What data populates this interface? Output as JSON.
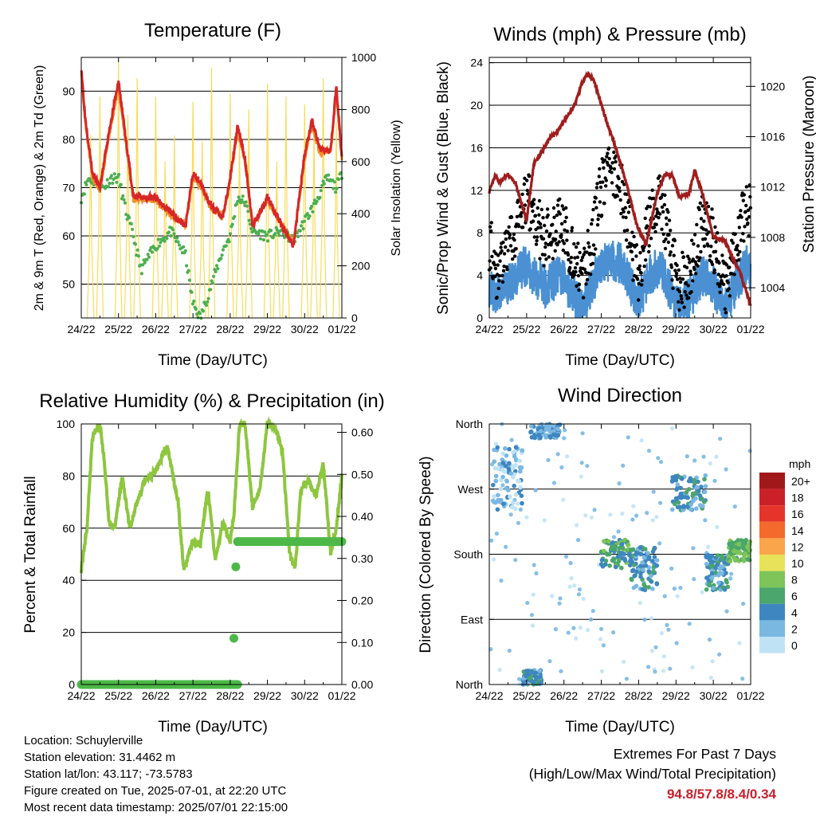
{
  "colors": {
    "temp_2m": "#d62728",
    "temp_9m": "#f28e2b",
    "dewpoint": "#4caf50",
    "solar": "#f7dc5a",
    "wind": "#4a90d2",
    "gust": "#000000",
    "pressure": "#a01d1d",
    "rh": "#8dc63f",
    "precip": "#4db848",
    "extremes_values": "#c8202c"
  },
  "speed_colorbar": {
    "unit": "mph",
    "labels": [
      "20+",
      "18",
      "16",
      "14",
      "12",
      "10",
      "8",
      "6",
      "4",
      "2",
      "0"
    ],
    "colors": [
      "#a1181b",
      "#cb2027",
      "#e5352b",
      "#f36a2c",
      "#fba54b",
      "#e8e25a",
      "#7dc459",
      "#4aa66a",
      "#3e86c0",
      "#7ab8e2",
      "#bfe3f5"
    ]
  },
  "charts": [
    {
      "id": "temperature",
      "title": "Temperature (F)",
      "xlabel": "Time (Day/UTC)",
      "ylabel": "2m & 9m T (Red, Orange) & 2m Td (Green)",
      "y2label": "Solar Insolation (Yellow)",
      "xticks": [
        "24/22",
        "25/22",
        "26/22",
        "27/22",
        "28/22",
        "29/22",
        "30/22",
        "01/22"
      ],
      "yticks": [
        "50",
        "60",
        "70",
        "80",
        "90"
      ],
      "y2ticks": [
        "0",
        "200",
        "400",
        "600",
        "800",
        "1000"
      ]
    },
    {
      "id": "winds",
      "title": "Winds (mph) & Pressure (mb)",
      "xlabel": "Time (Day/UTC)",
      "ylabel": "Sonic/Prop Wind & Gust (Blue, Black)",
      "y2label": "Station Pressure (Maroon)",
      "xticks": [
        "24/22",
        "25/22",
        "26/22",
        "27/22",
        "28/22",
        "29/22",
        "30/22",
        "01/22"
      ],
      "yticks": [
        "0",
        "4",
        "8",
        "12",
        "16",
        "20",
        "24"
      ],
      "y2ticks": [
        "1004",
        "1008",
        "1012",
        "1016",
        "1020"
      ]
    },
    {
      "id": "humidity",
      "title": "Relative Humidity (%) & Precipitation (in)",
      "xlabel": "Time (Day/UTC)",
      "ylabel": "Percent & Total Rainfall",
      "xticks": [
        "24/22",
        "25/22",
        "26/22",
        "27/22",
        "28/22",
        "29/22",
        "30/22",
        "01/22"
      ],
      "yticks": [
        "0",
        "20",
        "40",
        "60",
        "80",
        "100"
      ],
      "y2ticks": [
        "0.00",
        "0.10",
        "0.20",
        "0.30",
        "0.40",
        "0.50",
        "0.60"
      ]
    },
    {
      "id": "direction",
      "title": "Wind Direction",
      "xlabel": "Time (Day/UTC)",
      "ylabel": "Direction (Colored By Speed)",
      "xticks": [
        "24/22",
        "25/22",
        "26/22",
        "27/22",
        "28/22",
        "29/22",
        "30/22",
        "01/22"
      ],
      "yticks": [
        "North",
        "East",
        "South",
        "West",
        "North"
      ]
    }
  ],
  "chart_data": [
    {
      "type": "line",
      "title": "Temperature (F)",
      "x_unit": "days since 24/22 UTC",
      "ylim": [
        43,
        97
      ],
      "y2lim": [
        0,
        1000
      ],
      "series": [
        {
          "name": "2m T",
          "axis": "left",
          "x": [
            0,
            0.1,
            0.3,
            0.5,
            0.8,
            1.0,
            1.2,
            1.4,
            1.6,
            2.0,
            2.4,
            2.8,
            3.0,
            3.2,
            3.5,
            3.8,
            4.0,
            4.2,
            4.4,
            4.6,
            5.0,
            5.4,
            5.7,
            6.0,
            6.2,
            6.4,
            6.7,
            6.85,
            7.0
          ],
          "y": [
            95,
            85,
            73,
            70,
            84,
            92,
            80,
            68,
            68,
            68,
            65,
            62,
            73,
            71,
            66,
            64,
            72,
            83,
            76,
            62,
            68,
            62,
            58,
            77,
            84,
            78,
            78,
            91,
            76
          ]
        },
        {
          "name": "9m T",
          "axis": "left",
          "x": [
            0,
            0.1,
            0.3,
            0.5,
            0.8,
            1.0,
            1.2,
            1.4,
            1.6,
            2.0,
            2.4,
            2.8,
            3.0,
            3.2,
            3.5,
            3.8,
            4.0,
            4.2,
            4.4,
            4.6,
            5.0,
            5.4,
            5.7,
            6.0,
            6.2,
            6.4,
            6.7,
            6.85,
            7.0
          ],
          "y": [
            94,
            84,
            72,
            69.5,
            83,
            91,
            79,
            67.5,
            67.5,
            67.5,
            64.5,
            62,
            72,
            70.5,
            65.5,
            64,
            71.5,
            82,
            75.5,
            62,
            67.5,
            62,
            58.5,
            76,
            83,
            77.5,
            77.5,
            90,
            76
          ]
        },
        {
          "name": "2m Td",
          "axis": "left",
          "x": [
            0,
            0.2,
            0.4,
            0.6,
            0.8,
            1.0,
            1.2,
            1.4,
            1.6,
            2.0,
            2.4,
            2.8,
            3.0,
            3.2,
            3.5,
            3.8,
            4.0,
            4.2,
            4.4,
            4.6,
            5.0,
            5.4,
            5.7,
            6.0,
            6.3,
            6.6,
            6.85,
            7.0
          ],
          "y": [
            68,
            72,
            71,
            70,
            72,
            72,
            65,
            60,
            53,
            58,
            61,
            56,
            46,
            43,
            50,
            57,
            60,
            68,
            67,
            61,
            60,
            61,
            59,
            63,
            67,
            72,
            70,
            73
          ]
        },
        {
          "name": "Solar Insolation",
          "axis": "right",
          "peaks_x": [
            0.25,
            0.5,
            1.0,
            1.25,
            1.5,
            2.0,
            2.25,
            2.5,
            3.0,
            3.25,
            3.5,
            4.0,
            4.25,
            4.5,
            5.0,
            5.25,
            5.5,
            6.0,
            6.25,
            6.5,
            6.85
          ],
          "peaks_y": [
            700,
            850,
            990,
            780,
            920,
            850,
            600,
            700,
            830,
            680,
            960,
            860,
            700,
            800,
            900,
            600,
            850,
            820,
            720,
            920,
            750
          ]
        }
      ]
    },
    {
      "type": "scatter",
      "title": "Winds (mph) & Pressure (mb)",
      "x_unit": "days since 24/22 UTC",
      "ylim": [
        0,
        24.5
      ],
      "y2lim": [
        1001.6,
        1022.3
      ],
      "series": [
        {
          "name": "Wind",
          "axis": "left",
          "x": [
            0,
            0.2,
            0.4,
            0.7,
            1.0,
            1.2,
            1.5,
            1.9,
            2.2,
            2.5,
            2.8,
            3.0,
            3.3,
            3.6,
            3.9,
            4.0,
            4.3,
            4.6,
            4.9,
            5.1,
            5.4,
            5.7,
            6.0,
            6.3,
            6.6,
            6.9,
            7.0
          ],
          "y": [
            3,
            2,
            2.5,
            4,
            5,
            4,
            3,
            4,
            2.5,
            1,
            3.5,
            5,
            5.5,
            5,
            2,
            1.5,
            4,
            5,
            2,
            1,
            2,
            4,
            3,
            1,
            3,
            5,
            4
          ]
        },
        {
          "name": "Gust",
          "axis": "left",
          "x": [
            0,
            0.2,
            0.4,
            0.7,
            1.0,
            1.2,
            1.5,
            1.9,
            2.2,
            2.5,
            2.8,
            3.0,
            3.3,
            3.6,
            3.9,
            4.0,
            4.3,
            4.6,
            4.9,
            5.1,
            5.4,
            5.7,
            6.0,
            6.3,
            6.6,
            6.9,
            7.0
          ],
          "y": [
            7,
            4,
            5,
            8,
            11,
            9,
            7,
            9,
            6,
            3,
            8,
            12,
            14,
            11,
            5,
            4,
            9,
            11,
            5,
            3,
            4,
            9,
            7,
            2,
            6,
            11,
            9
          ]
        },
        {
          "name": "Station Pressure",
          "axis": "right",
          "x": [
            0,
            0.15,
            0.3,
            0.5,
            0.7,
            1.0,
            1.2,
            1.4,
            1.6,
            1.8,
            2.0,
            2.3,
            2.5,
            2.65,
            2.8,
            3.1,
            3.4,
            3.7,
            3.95,
            4.2,
            4.5,
            4.7,
            4.9,
            5.1,
            5.35,
            5.5,
            5.7,
            6.0,
            6.3,
            6.5,
            6.7,
            6.85,
            7.0
          ],
          "y": [
            1011.6,
            1012.8,
            1012.4,
            1013,
            1012.3,
            1009.3,
            1014,
            1014.7,
            1015.9,
            1016.3,
            1017.2,
            1018.6,
            1020.4,
            1021,
            1020.5,
            1017.6,
            1015,
            1012,
            1009,
            1007.4,
            1011.5,
            1013,
            1012.9,
            1011.2,
            1011.5,
            1013.3,
            1011.6,
            1008,
            1007.8,
            1006.5,
            1005.3,
            1004,
            1002.6
          ]
        }
      ]
    },
    {
      "type": "line",
      "title": "Relative Humidity (%) & Precipitation (in)",
      "x_unit": "days since 24/22 UTC",
      "ylim": [
        0,
        100
      ],
      "y2lim": [
        0,
        0.62
      ],
      "series": [
        {
          "name": "Relative Humidity",
          "axis": "left",
          "x": [
            0,
            0.15,
            0.3,
            0.5,
            0.6,
            0.75,
            0.9,
            1.1,
            1.3,
            1.5,
            1.7,
            2.0,
            2.3,
            2.6,
            2.75,
            3.0,
            3.2,
            3.4,
            3.6,
            3.8,
            4.0,
            4.1,
            4.25,
            4.4,
            4.6,
            4.8,
            5.0,
            5.2,
            5.4,
            5.6,
            5.75,
            5.9,
            6.1,
            6.3,
            6.5,
            6.7,
            6.85,
            7.0
          ],
          "y": [
            44,
            60,
            95,
            100,
            88,
            62,
            60,
            80,
            60,
            70,
            78,
            82,
            92,
            70,
            44,
            55,
            54,
            75,
            48,
            62,
            55,
            65,
            100,
            100,
            68,
            75,
            100,
            99,
            90,
            50,
            45,
            75,
            78,
            72,
            85,
            50,
            60,
            80
          ]
        },
        {
          "name": "Precipitation",
          "axis": "right",
          "x": [
            0,
            2.0,
            4.0,
            4.05,
            4.1,
            4.15,
            4.2,
            7.0
          ],
          "y": [
            0.0,
            0.0,
            0.0,
            0.0,
            0.11,
            0.28,
            0.34,
            0.34
          ]
        }
      ]
    },
    {
      "type": "scatter",
      "title": "Wind Direction",
      "x_unit": "days since 24/22 UTC",
      "ylim": [
        0,
        360
      ],
      "clusters": [
        {
          "x": [
            0.1,
            0.9
          ],
          "y": [
            240,
            330
          ],
          "speed": 2
        },
        {
          "x": [
            0.9,
            1.4
          ],
          "y": [
            0,
            20
          ],
          "speed": 4
        },
        {
          "x": [
            1.1,
            1.9
          ],
          "y": [
            340,
            360
          ],
          "speed": 3
        },
        {
          "x": [
            3.0,
            3.8
          ],
          "y": [
            160,
            200
          ],
          "speed": 6
        },
        {
          "x": [
            3.8,
            4.5
          ],
          "y": [
            130,
            190
          ],
          "speed": 4
        },
        {
          "x": [
            4.9,
            5.8
          ],
          "y": [
            240,
            290
          ],
          "speed": 4
        },
        {
          "x": [
            5.8,
            6.4
          ],
          "y": [
            130,
            180
          ],
          "speed": 4
        },
        {
          "x": [
            6.4,
            7.0
          ],
          "y": [
            170,
            200
          ],
          "speed": 7
        }
      ]
    }
  ],
  "footer": {
    "location": "Location: Schuylerville",
    "elevation": "Station elevation: 31.4462 m",
    "latlon": "Station lat/lon: 43.117; -73.5783",
    "created": "Figure created on Tue, 2025-07-01, at 22:20 UTC",
    "recent": "Most recent data timestamp: 2025/07/01 22:15:00",
    "extremes_line1": "Extremes For Past 7 Days",
    "extremes_line2": "(High/Low/Max Wind/Total Precipitation)",
    "extremes_values": "94.8/57.8/8.4/0.34"
  }
}
